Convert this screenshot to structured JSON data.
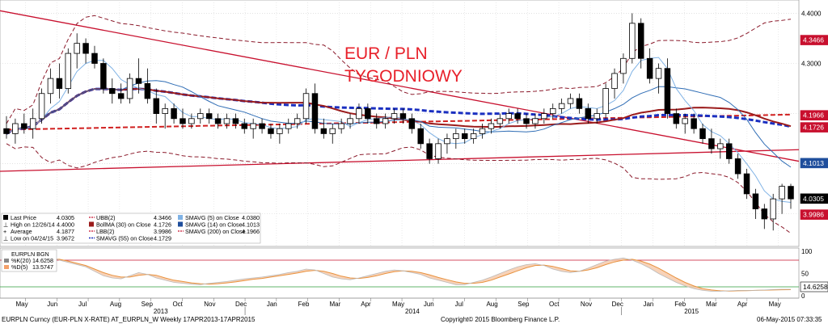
{
  "title": {
    "line1": "EUR / PLN",
    "line2": "TYGODNIOWY",
    "color": "#e8202a"
  },
  "footer": {
    "left": "EURPLN Curncy (EUR-PLN X-RATE) AT_EURPLN_W  Weekly 17APR2013-17APR2015",
    "center": "Copyright© 2015 Bloomberg Finance L.P.",
    "right": "06-May-2015 07:33:35"
  },
  "axis": {
    "months": [
      "May",
      "Jun",
      "Jul",
      "Aug",
      "Sep",
      "Oct",
      "Nov",
      "Dec",
      "Jan",
      "Feb",
      "Mar",
      "Apr",
      "May",
      "Jun",
      "Jul",
      "Aug",
      "Sep",
      "Oct",
      "Nov",
      "Dec",
      "Jan",
      "Feb",
      "Mar",
      "Apr",
      "May"
    ],
    "years": [
      "2013",
      "2014",
      "2015"
    ],
    "price_ticks": [
      "4.4000",
      "4.3000"
    ],
    "osc_ticks": [
      "100",
      "50",
      "0"
    ]
  },
  "price_tags": [
    {
      "label": "4.3466",
      "bg": "#c8102e",
      "fg": "#fff"
    },
    {
      "label": "4.1966",
      "bg": "#c8102e",
      "fg": "#fff"
    },
    {
      "label": "4.1726",
      "bg": "#c8102e",
      "fg": "#fff"
    },
    {
      "label": "4.1013",
      "bg": "#1f4e9c",
      "fg": "#fff"
    },
    {
      "label": "4.0305",
      "bg": "#000000",
      "fg": "#fff"
    },
    {
      "label": "3.9986",
      "bg": "#c8102e",
      "fg": "#fff"
    },
    {
      "label": "14.6258",
      "bg": "#ffffff",
      "fg": "#000"
    }
  ],
  "legend": {
    "col1": [
      {
        "icon": "black-square",
        "text": "Last Price",
        "value": "4.0305"
      },
      {
        "icon": "tick",
        "text": "High on 12/26/14",
        "value": "4.4000"
      },
      {
        "icon": "plus",
        "text": "Average",
        "value": "4.1877"
      },
      {
        "icon": "tick",
        "text": "Low on 04/24/15",
        "value": "3.9672"
      }
    ],
    "col2": [
      {
        "icon": "dash-red",
        "text": "UBB(2)",
        "value": "4.3466"
      },
      {
        "icon": "darkred-square",
        "text": "BollMA (30) on Close",
        "value": "4.1726"
      },
      {
        "icon": "dash-red",
        "text": "LBB(2)",
        "value": "3.9986"
      },
      {
        "icon": "dash-blue",
        "text": "SMAVG (55) on Close",
        "value": "4.1729"
      }
    ],
    "col3": [
      {
        "icon": "lightblue-square",
        "text": "SMAVG (5) on Close",
        "value": "4.0380"
      },
      {
        "icon": "blue-square",
        "text": "SMAVG (14) on Close",
        "value": "4.1013"
      },
      {
        "icon": "dash-red",
        "text": "SMAVG (200) on Close",
        "value": "4.1966"
      }
    ]
  },
  "osc_legend": {
    "title": "EURPLN BGN",
    "k_label": "%K(20)",
    "k_value": "14.6258",
    "d_label": "%D(5)",
    "d_value": "13.5747"
  },
  "chart_data": {
    "type": "candlestick",
    "title": "EUR / PLN TYGODNIOWY",
    "ylim": [
      3.94,
      4.42
    ],
    "x_range": [
      "2013-04-17",
      "2015-04-17"
    ],
    "candles": [
      {
        "o": 4.17,
        "h": 4.195,
        "l": 4.15,
        "c": 4.16
      },
      {
        "o": 4.16,
        "h": 4.19,
        "l": 4.14,
        "c": 4.18
      },
      {
        "o": 4.18,
        "h": 4.2,
        "l": 4.16,
        "c": 4.17
      },
      {
        "o": 4.17,
        "h": 4.21,
        "l": 4.15,
        "c": 4.19
      },
      {
        "o": 4.19,
        "h": 4.25,
        "l": 4.18,
        "c": 4.24
      },
      {
        "o": 4.24,
        "h": 4.29,
        "l": 4.22,
        "c": 4.27
      },
      {
        "o": 4.27,
        "h": 4.3,
        "l": 4.23,
        "c": 4.25
      },
      {
        "o": 4.25,
        "h": 4.33,
        "l": 4.24,
        "c": 4.32
      },
      {
        "o": 4.32,
        "h": 4.36,
        "l": 4.29,
        "c": 4.34
      },
      {
        "o": 4.34,
        "h": 4.35,
        "l": 4.3,
        "c": 4.32
      },
      {
        "o": 4.32,
        "h": 4.335,
        "l": 4.29,
        "c": 4.3
      },
      {
        "o": 4.3,
        "h": 4.31,
        "l": 4.24,
        "c": 4.25
      },
      {
        "o": 4.25,
        "h": 4.27,
        "l": 4.22,
        "c": 4.24
      },
      {
        "o": 4.24,
        "h": 4.26,
        "l": 4.22,
        "c": 4.23
      },
      {
        "o": 4.23,
        "h": 4.28,
        "l": 4.22,
        "c": 4.27
      },
      {
        "o": 4.27,
        "h": 4.31,
        "l": 4.24,
        "c": 4.26
      },
      {
        "o": 4.26,
        "h": 4.29,
        "l": 4.22,
        "c": 4.23
      },
      {
        "o": 4.23,
        "h": 4.25,
        "l": 4.18,
        "c": 4.2
      },
      {
        "o": 4.2,
        "h": 4.22,
        "l": 4.17,
        "c": 4.21
      },
      {
        "o": 4.21,
        "h": 4.22,
        "l": 4.18,
        "c": 4.19
      },
      {
        "o": 4.19,
        "h": 4.21,
        "l": 4.17,
        "c": 4.18
      },
      {
        "o": 4.18,
        "h": 4.2,
        "l": 4.17,
        "c": 4.19
      },
      {
        "o": 4.19,
        "h": 4.21,
        "l": 4.18,
        "c": 4.2
      },
      {
        "o": 4.2,
        "h": 4.21,
        "l": 4.18,
        "c": 4.19
      },
      {
        "o": 4.19,
        "h": 4.2,
        "l": 4.17,
        "c": 4.18
      },
      {
        "o": 4.18,
        "h": 4.2,
        "l": 4.17,
        "c": 4.19
      },
      {
        "o": 4.19,
        "h": 4.2,
        "l": 4.17,
        "c": 4.18
      },
      {
        "o": 4.18,
        "h": 4.19,
        "l": 4.16,
        "c": 4.17
      },
      {
        "o": 4.17,
        "h": 4.19,
        "l": 4.15,
        "c": 4.18
      },
      {
        "o": 4.18,
        "h": 4.19,
        "l": 4.16,
        "c": 4.17
      },
      {
        "o": 4.17,
        "h": 4.18,
        "l": 4.15,
        "c": 4.16
      },
      {
        "o": 4.16,
        "h": 4.18,
        "l": 4.14,
        "c": 4.17
      },
      {
        "o": 4.17,
        "h": 4.19,
        "l": 4.16,
        "c": 4.18
      },
      {
        "o": 4.18,
        "h": 4.2,
        "l": 4.17,
        "c": 4.19
      },
      {
        "o": 4.19,
        "h": 4.25,
        "l": 4.18,
        "c": 4.24
      },
      {
        "o": 4.24,
        "h": 4.26,
        "l": 4.16,
        "c": 4.17
      },
      {
        "o": 4.17,
        "h": 4.19,
        "l": 4.15,
        "c": 4.16
      },
      {
        "o": 4.16,
        "h": 4.18,
        "l": 4.14,
        "c": 4.17
      },
      {
        "o": 4.17,
        "h": 4.19,
        "l": 4.16,
        "c": 4.18
      },
      {
        "o": 4.18,
        "h": 4.2,
        "l": 4.17,
        "c": 4.19
      },
      {
        "o": 4.19,
        "h": 4.22,
        "l": 4.18,
        "c": 4.21
      },
      {
        "o": 4.21,
        "h": 4.22,
        "l": 4.18,
        "c": 4.19
      },
      {
        "o": 4.19,
        "h": 4.2,
        "l": 4.17,
        "c": 4.18
      },
      {
        "o": 4.18,
        "h": 4.2,
        "l": 4.17,
        "c": 4.19
      },
      {
        "o": 4.19,
        "h": 4.21,
        "l": 4.18,
        "c": 4.2
      },
      {
        "o": 4.2,
        "h": 4.21,
        "l": 4.18,
        "c": 4.19
      },
      {
        "o": 4.19,
        "h": 4.2,
        "l": 4.16,
        "c": 4.17
      },
      {
        "o": 4.17,
        "h": 4.18,
        "l": 4.13,
        "c": 4.14
      },
      {
        "o": 4.14,
        "h": 4.15,
        "l": 4.1,
        "c": 4.11
      },
      {
        "o": 4.11,
        "h": 4.15,
        "l": 4.1,
        "c": 4.14
      },
      {
        "o": 4.14,
        "h": 4.16,
        "l": 4.12,
        "c": 4.15
      },
      {
        "o": 4.15,
        "h": 4.17,
        "l": 4.13,
        "c": 4.16
      },
      {
        "o": 4.16,
        "h": 4.17,
        "l": 4.14,
        "c": 4.15
      },
      {
        "o": 4.15,
        "h": 4.17,
        "l": 4.14,
        "c": 4.16
      },
      {
        "o": 4.16,
        "h": 4.18,
        "l": 4.15,
        "c": 4.17
      },
      {
        "o": 4.17,
        "h": 4.19,
        "l": 4.16,
        "c": 4.18
      },
      {
        "o": 4.18,
        "h": 4.2,
        "l": 4.17,
        "c": 4.19
      },
      {
        "o": 4.19,
        "h": 4.21,
        "l": 4.18,
        "c": 4.2
      },
      {
        "o": 4.2,
        "h": 4.21,
        "l": 4.18,
        "c": 4.19
      },
      {
        "o": 4.19,
        "h": 4.2,
        "l": 4.17,
        "c": 4.18
      },
      {
        "o": 4.18,
        "h": 4.2,
        "l": 4.17,
        "c": 4.19
      },
      {
        "o": 4.19,
        "h": 4.21,
        "l": 4.18,
        "c": 4.2
      },
      {
        "o": 4.2,
        "h": 4.22,
        "l": 4.19,
        "c": 4.21
      },
      {
        "o": 4.21,
        "h": 4.23,
        "l": 4.2,
        "c": 4.22
      },
      {
        "o": 4.22,
        "h": 4.24,
        "l": 4.21,
        "c": 4.23
      },
      {
        "o": 4.23,
        "h": 4.24,
        "l": 4.2,
        "c": 4.21
      },
      {
        "o": 4.21,
        "h": 4.22,
        "l": 4.18,
        "c": 4.19
      },
      {
        "o": 4.19,
        "h": 4.21,
        "l": 4.18,
        "c": 4.2
      },
      {
        "o": 4.2,
        "h": 4.26,
        "l": 4.19,
        "c": 4.25
      },
      {
        "o": 4.25,
        "h": 4.29,
        "l": 4.23,
        "c": 4.28
      },
      {
        "o": 4.28,
        "h": 4.32,
        "l": 4.26,
        "c": 4.31
      },
      {
        "o": 4.31,
        "h": 4.4,
        "l": 4.3,
        "c": 4.38
      },
      {
        "o": 4.38,
        "h": 4.39,
        "l": 4.29,
        "c": 4.31
      },
      {
        "o": 4.31,
        "h": 4.33,
        "l": 4.26,
        "c": 4.27
      },
      {
        "o": 4.27,
        "h": 4.3,
        "l": 4.24,
        "c": 4.29
      },
      {
        "o": 4.29,
        "h": 4.31,
        "l": 4.19,
        "c": 4.2
      },
      {
        "o": 4.2,
        "h": 4.21,
        "l": 4.17,
        "c": 4.18
      },
      {
        "o": 4.18,
        "h": 4.2,
        "l": 4.16,
        "c": 4.19
      },
      {
        "o": 4.19,
        "h": 4.2,
        "l": 4.16,
        "c": 4.17
      },
      {
        "o": 4.17,
        "h": 4.18,
        "l": 4.14,
        "c": 4.15
      },
      {
        "o": 4.15,
        "h": 4.17,
        "l": 4.12,
        "c": 4.13
      },
      {
        "o": 4.13,
        "h": 4.15,
        "l": 4.11,
        "c": 4.14
      },
      {
        "o": 4.14,
        "h": 4.15,
        "l": 4.1,
        "c": 4.11
      },
      {
        "o": 4.11,
        "h": 4.12,
        "l": 4.07,
        "c": 4.08
      },
      {
        "o": 4.08,
        "h": 4.09,
        "l": 4.03,
        "c": 4.04
      },
      {
        "o": 4.04,
        "h": 4.05,
        "l": 3.99,
        "c": 4.01
      },
      {
        "o": 4.01,
        "h": 4.02,
        "l": 3.97,
        "c": 3.99
      },
      {
        "o": 3.99,
        "h": 4.04,
        "l": 3.967,
        "c": 4.03
      },
      {
        "o": 4.03,
        "h": 4.06,
        "l": 4.0,
        "c": 4.055
      },
      {
        "o": 4.055,
        "h": 4.06,
        "l": 4.01,
        "c": 4.03
      }
    ],
    "sma5_end": 4.038,
    "sma14_end": 4.1013,
    "sma55_end": 4.1729,
    "sma200_end": 4.1966,
    "bollma30_end": 4.1726,
    "ubb_end": 4.3466,
    "lbb_end": 3.9986,
    "trendlines": [
      {
        "from": [
          0,
          4.405
        ],
        "to": [
          89,
          4.105
        ],
        "color": "#c8102e"
      },
      {
        "from": [
          0,
          4.085
        ],
        "to": [
          89,
          4.128
        ],
        "color": "#c8102e"
      }
    ],
    "stochastic": {
      "k": [
        60,
        68,
        72,
        78,
        85,
        88,
        80,
        75,
        70,
        65,
        55,
        45,
        40,
        38,
        45,
        52,
        48,
        40,
        35,
        30,
        28,
        26,
        25,
        28,
        30,
        32,
        35,
        38,
        40,
        42,
        45,
        48,
        52,
        55,
        60,
        58,
        50,
        42,
        38,
        36,
        40,
        45,
        50,
        55,
        58,
        56,
        52,
        48,
        40,
        35,
        30,
        25,
        25,
        30,
        35,
        42,
        50,
        58,
        65,
        70,
        72,
        68,
        60,
        55,
        52,
        55,
        62,
        70,
        78,
        82,
        85,
        80,
        72,
        62,
        50,
        40,
        30,
        22,
        16,
        12,
        10,
        10,
        11,
        12,
        12,
        12,
        13,
        14,
        14.6,
        14.6
      ],
      "d": [
        55,
        62,
        68,
        72,
        78,
        82,
        82,
        78,
        73,
        68,
        60,
        52,
        46,
        42,
        42,
        46,
        48,
        46,
        40,
        35,
        32,
        29,
        27,
        26,
        27,
        29,
        31,
        34,
        37,
        39,
        42,
        45,
        48,
        51,
        55,
        57,
        55,
        50,
        44,
        40,
        39,
        41,
        45,
        50,
        54,
        56,
        55,
        52,
        47,
        41,
        36,
        31,
        28,
        28,
        30,
        35,
        42,
        49,
        56,
        63,
        68,
        69,
        66,
        61,
        56,
        55,
        58,
        63,
        70,
        76,
        80,
        82,
        78,
        71,
        62,
        51,
        40,
        30,
        22,
        16,
        13,
        11,
        10.5,
        11,
        11.5,
        12,
        12.5,
        13,
        13.5,
        13.6
      ],
      "levels": [
        80,
        20
      ],
      "ylim": [
        0,
        100
      ]
    }
  }
}
